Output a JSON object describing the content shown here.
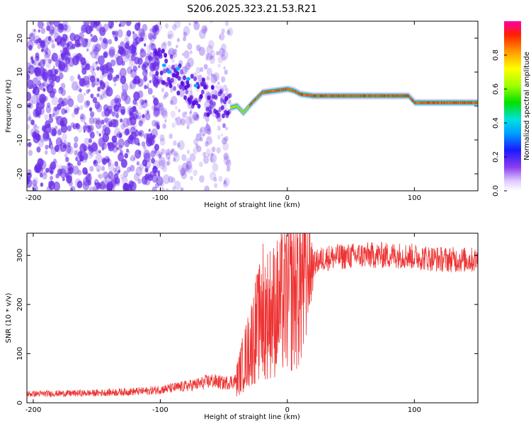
{
  "title": "S206.2025.323.21.53.R21",
  "colors": {
    "snr_line": "#ee3333",
    "spectro_dots": "#6a2ee8",
    "frame": "#000000"
  },
  "chart_data": [
    {
      "type": "heatmap",
      "name": "spectrogram",
      "xlabel": "Height of straight line (km)",
      "ylabel": "Frequency (Hz)",
      "xlim": [
        -205,
        150
      ],
      "ylim": [
        -25,
        25
      ],
      "xticks": [
        -200,
        -100,
        0,
        100
      ],
      "yticks": [
        -20,
        -10,
        0,
        10,
        20
      ],
      "colorbar": {
        "label": "Normalized spectral amplitude",
        "range": [
          0,
          1
        ],
        "ticks": [
          0.0,
          0.2,
          0.4,
          0.6,
          0.8
        ]
      },
      "ridge": {
        "description_points_km_hz": [
          [
            -100,
            12
          ],
          [
            -90,
            10
          ],
          [
            -80,
            6
          ],
          [
            -70,
            4
          ],
          [
            -60,
            1
          ],
          [
            -50,
            -1
          ],
          [
            -40,
            0
          ],
          [
            -35,
            -2
          ],
          [
            -28,
            1
          ],
          [
            -20,
            4
          ],
          [
            -10,
            4.5
          ],
          [
            0,
            5
          ],
          [
            5,
            4.5
          ],
          [
            10,
            3.5
          ],
          [
            20,
            3
          ],
          [
            95,
            3
          ],
          [
            100,
            1
          ],
          [
            150,
            1
          ]
        ]
      }
    },
    {
      "type": "line",
      "name": "snr",
      "xlabel": "Height of straight line (km)",
      "ylabel": "SNR (10 * v/v)",
      "xlim": [
        -205,
        150
      ],
      "ylim": [
        0,
        345
      ],
      "xticks": [
        -200,
        -100,
        0,
        100
      ],
      "yticks": [
        0,
        100,
        200,
        300
      ],
      "trend_km_snr": [
        [
          -205,
          18
        ],
        [
          -150,
          20
        ],
        [
          -110,
          24
        ],
        [
          -90,
          30
        ],
        [
          -70,
          38
        ],
        [
          -60,
          45
        ],
        [
          -50,
          40
        ],
        [
          -40,
          45
        ],
        [
          -35,
          80
        ],
        [
          -30,
          110
        ],
        [
          -25,
          150
        ],
        [
          -20,
          170
        ],
        [
          -15,
          185
        ],
        [
          -10,
          190
        ],
        [
          -5,
          200
        ],
        [
          0,
          215
        ],
        [
          5,
          230
        ],
        [
          10,
          245
        ],
        [
          15,
          265
        ],
        [
          20,
          280
        ],
        [
          25,
          290
        ],
        [
          30,
          295
        ],
        [
          60,
          300
        ],
        [
          90,
          300
        ],
        [
          120,
          292
        ],
        [
          150,
          290
        ]
      ]
    }
  ]
}
